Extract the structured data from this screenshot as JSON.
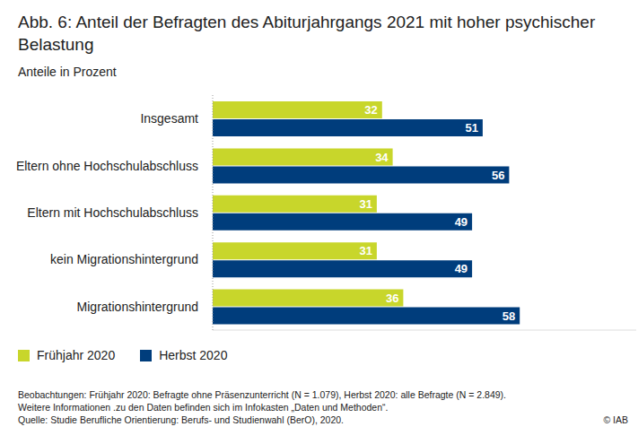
{
  "chart_data": {
    "type": "bar",
    "title": "Abb. 6: Anteil der Befragten des Abiturjahrgangs 2021 mit hoher psychischer Belastung",
    "subtitle": "Anteile in Prozent",
    "categories": [
      "Insgesamt",
      "Eltern ohne Hochschulabschluss",
      "Eltern mit Hochschulabschluss",
      "kein Migrationshintergrund",
      "Migrationshintergrund"
    ],
    "series": [
      {
        "name": "Frühjahr 2020",
        "color": "#c8d62b",
        "values": [
          32,
          34,
          31,
          31,
          36
        ]
      },
      {
        "name": "Herbst 2020",
        "color": "#003d7c",
        "values": [
          51,
          56,
          49,
          49,
          58
        ]
      }
    ],
    "orientation": "horizontal",
    "data_labels": true,
    "tick_labels": "y",
    "grid": false,
    "legend": "bottom-left",
    "xlim": [
      0,
      80
    ],
    "notes": [
      "Beobachtungen: Frühjahr 2020: Befragte ohne Präsenzunterricht (N = 1.079), Herbst 2020: alle Befragte (N = 2.849).",
      "Weitere Informationen .zu den Daten befinden sich im Infokasten „Daten und Methoden“."
    ],
    "source": "Quelle: Studie Berufliche Orientierung: Berufs- und Studienwahl (BerO), 2020.",
    "copyright": "© IAB"
  }
}
